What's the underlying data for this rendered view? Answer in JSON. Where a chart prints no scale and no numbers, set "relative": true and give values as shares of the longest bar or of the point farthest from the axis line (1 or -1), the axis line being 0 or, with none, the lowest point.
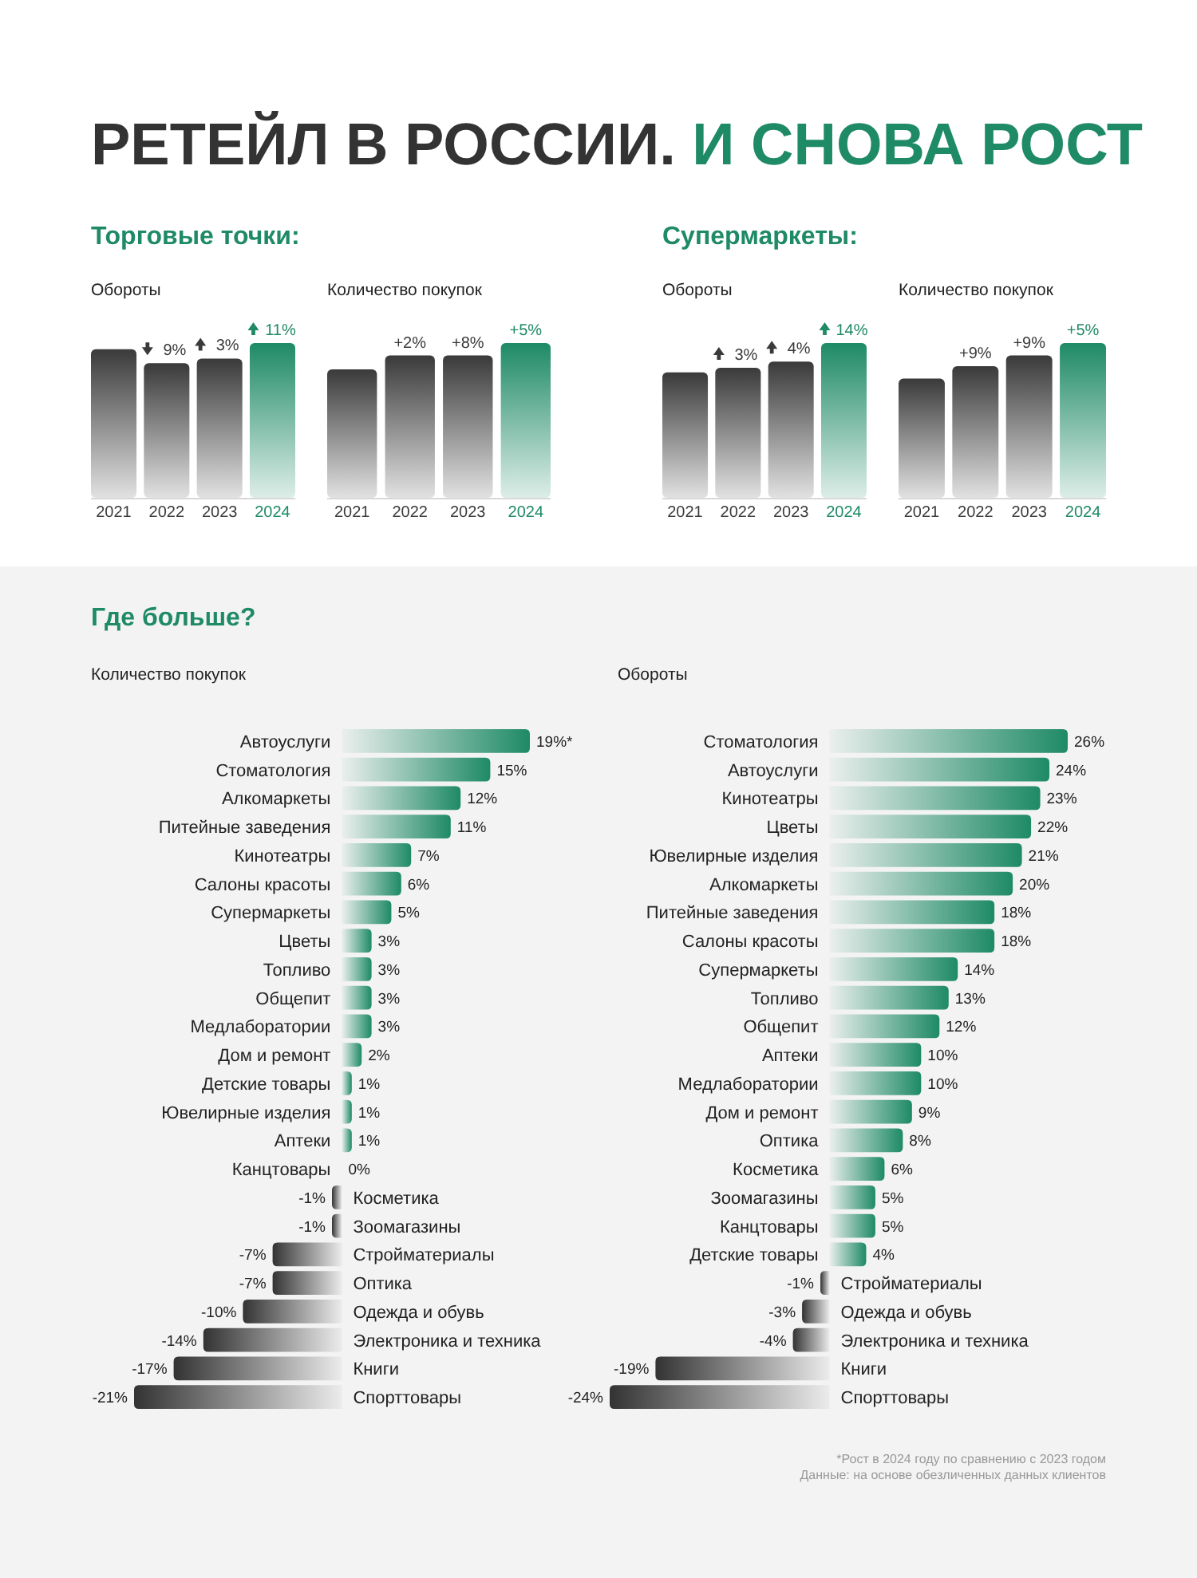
{
  "chart_data": [
    {
      "type": "bar",
      "annotations": [
        "РЕТЕЙЛ В РОССИИ.",
        "И СНОВА РОСТ",
        "9%",
        "3%",
        "11%"
      ],
      "subtitle": "Торговые точки:",
      "title": "Обороты",
      "relative": true,
      "categories": [
        "2021",
        "2022",
        "2023",
        "2024"
      ],
      "values": [
        0.96,
        0.87,
        0.9,
        1
      ],
      "colors": [
        "#3a3a3a",
        "#3a3a3a",
        "#3a3a3a",
        "#1e8a66"
      ]
    },
    {
      "type": "bar",
      "title": "Количество покупок",
      "relative": true,
      "categories": [
        "2021",
        "2022",
        "2023",
        "2024"
      ],
      "values": [
        0.83,
        0.92,
        0.92,
        1
      ],
      "colors": [
        "#3a3a3a",
        "#3a3a3a",
        "#3a3a3a",
        "#1e8a66"
      ],
      "annotations": [
        "+2%",
        "+8%",
        "+5%"
      ]
    },
    {
      "type": "bar",
      "subtitle": "Супермаркеты:",
      "title": "Обороты",
      "relative": true,
      "categories": [
        "2021",
        "2022",
        "2023",
        "2024"
      ],
      "values": [
        0.81,
        0.84,
        0.88,
        1
      ],
      "colors": [
        "#3a3a3a",
        "#3a3a3a",
        "#3a3a3a",
        "#1e8a66"
      ],
      "annotations": [
        "3%",
        "4%",
        "14%"
      ]
    },
    {
      "type": "bar",
      "title": "Количество покупок",
      "relative": true,
      "categories": [
        "2021",
        "2022",
        "2023",
        "2024"
      ],
      "values": [
        0.77,
        0.85,
        0.92,
        1
      ],
      "colors": [
        "#3a3a3a",
        "#3a3a3a",
        "#3a3a3a",
        "#1e8a66"
      ],
      "annotations": [
        "+9%",
        "+9%",
        "+5%"
      ]
    },
    {
      "type": "bar",
      "orientation": "horizontal",
      "subtitle": "Где больше?",
      "title": "Количество покупок",
      "tick_labels": "y",
      "categories": [
        "Автоуслуги",
        "Стоматология",
        "Алкомаркеты",
        "Питейные заведения",
        "Кинотеатры",
        "Салоны красоты",
        "Супермаркеты",
        "Цветы",
        "Топливо",
        "Общепит",
        "Медлаборатории",
        "Дом и ремонт",
        "Детские товары",
        "Ювелирные изделия",
        "Аптеки",
        "Канцтовары",
        "Косметика",
        "Зоомагазины",
        "Стройматериалы",
        "Оптика",
        "Одежда и обувь",
        "Электроника и техника",
        "Книги",
        "Спорттовары"
      ],
      "values": [
        19,
        15,
        12,
        11,
        7,
        6,
        5,
        3,
        3,
        3,
        3,
        2,
        1,
        1,
        1,
        0,
        -1,
        -1,
        -7,
        -7,
        -10,
        -14,
        -17,
        -21
      ],
      "value_labels": [
        "19%*",
        "15%",
        "12%",
        "11%",
        "7%",
        "6%",
        "5%",
        "3%",
        "3%",
        "3%",
        "3%",
        "2%",
        "1%",
        "1%",
        "1%",
        "0%",
        "-1%",
        "-1%",
        "-7%",
        "-7%",
        "-10%",
        "-14%",
        "-17%",
        "-21%"
      ],
      "colors": [
        "#1e8a66",
        "#1e8a66",
        "#1e8a66",
        "#1e8a66",
        "#1e8a66",
        "#1e8a66",
        "#1e8a66",
        "#1e8a66",
        "#1e8a66",
        "#1e8a66",
        "#1e8a66",
        "#1e8a66",
        "#1e8a66",
        "#1e8a66",
        "#1e8a66",
        "#1e8a66",
        "#333333",
        "#333333",
        "#333333",
        "#333333",
        "#333333",
        "#333333",
        "#333333",
        "#333333"
      ]
    },
    {
      "type": "bar",
      "orientation": "horizontal",
      "title": "Обороты",
      "tick_labels": "y",
      "categories": [
        "Стоматология",
        "Автоуслуги",
        "Кинотеатры",
        "Цветы",
        "Ювелирные изделия",
        "Алкомаркеты",
        "Питейные заведения",
        "Салоны красоты",
        "Супермаркеты",
        "Топливо",
        "Общепит",
        "Аптеки",
        "Медлаборатории",
        "Дом и ремонт",
        "Оптика",
        "Косметика",
        "Зоомагазины",
        "Канцтовары",
        "Детские товары",
        "Стройматериалы",
        "Одежда и обувь",
        "Электроника и техника",
        "Книги",
        "Спорттовары"
      ],
      "values": [
        26,
        24,
        23,
        22,
        21,
        20,
        18,
        18,
        14,
        13,
        12,
        10,
        10,
        9,
        8,
        6,
        5,
        5,
        4,
        -1,
        -3,
        -4,
        -19,
        -24
      ],
      "value_labels": [
        "26%",
        "24%",
        "23%",
        "22%",
        "21%",
        "20%",
        "18%",
        "18%",
        "14%",
        "13%",
        "12%",
        "10%",
        "10%",
        "9%",
        "8%",
        "6%",
        "5%",
        "5%",
        "4%",
        "-1%",
        "-3%",
        "-4%",
        "-19%",
        "-24%"
      ],
      "colors": [
        "#1e8a66",
        "#1e8a66",
        "#1e8a66",
        "#1e8a66",
        "#1e8a66",
        "#1e8a66",
        "#1e8a66",
        "#1e8a66",
        "#1e8a66",
        "#1e8a66",
        "#1e8a66",
        "#1e8a66",
        "#1e8a66",
        "#1e8a66",
        "#1e8a66",
        "#1e8a66",
        "#1e8a66",
        "#1e8a66",
        "#1e8a66",
        "#333333",
        "#333333",
        "#333333",
        "#333333",
        "#333333"
      ],
      "annotations": [
        "*Рост в 2024 году по сравнению с 2023 годом",
        "Данные: на основе обезличенных данных клиентов"
      ]
    }
  ]
}
